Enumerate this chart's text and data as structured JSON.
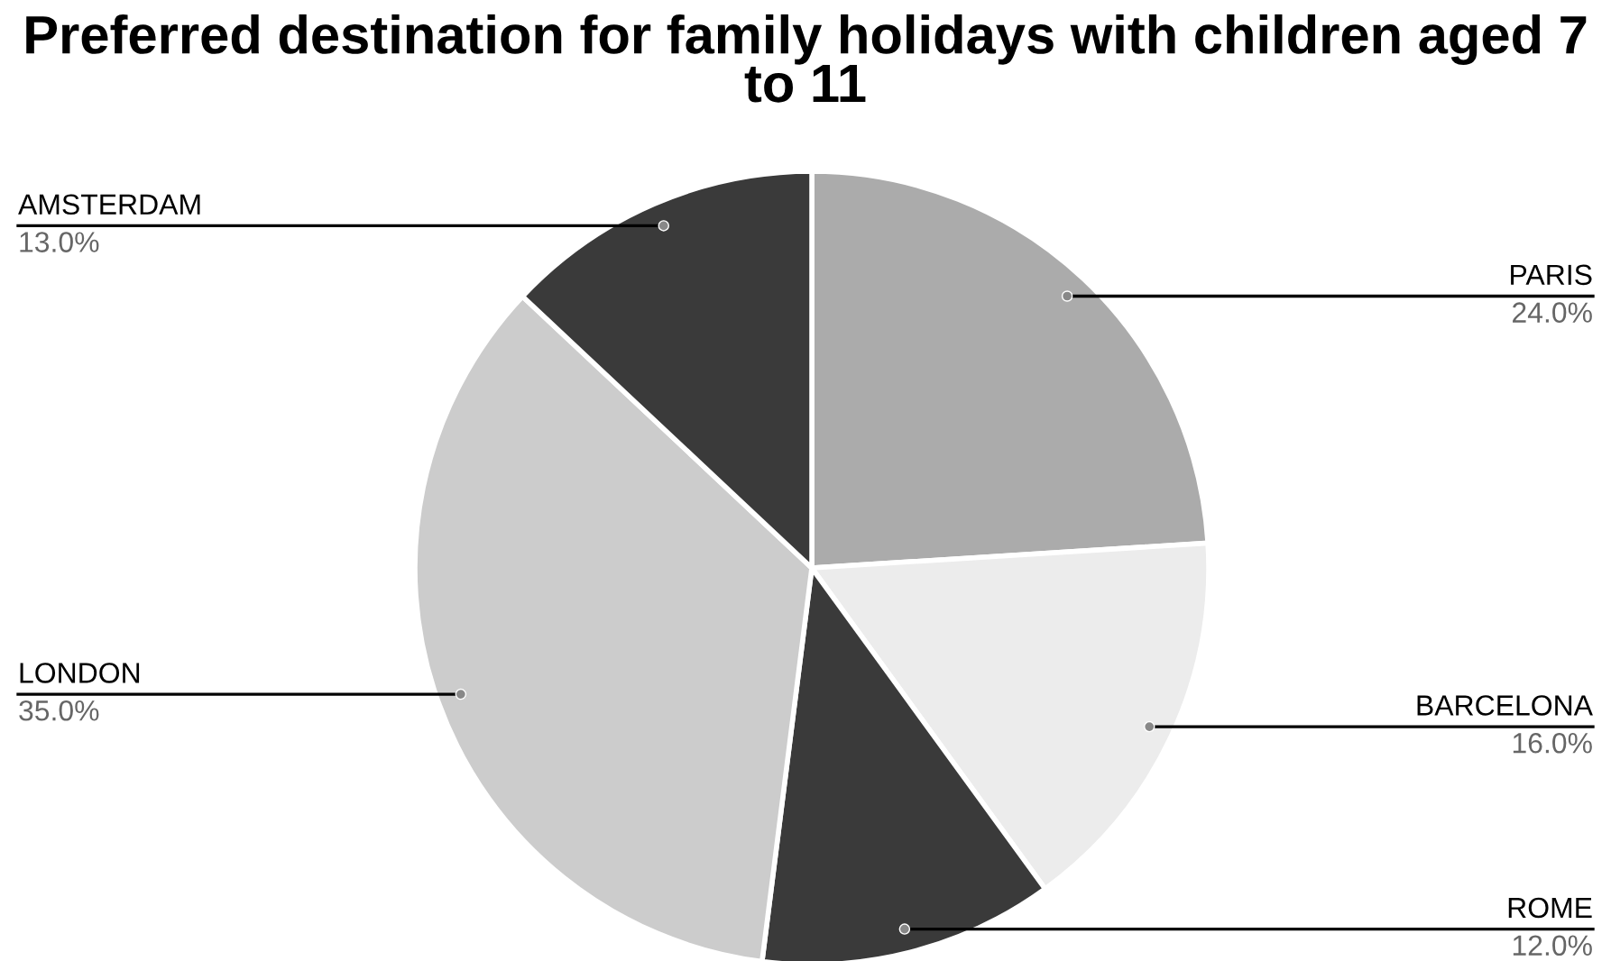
{
  "chart_data": {
    "type": "pie",
    "title": "Preferred destination for family holidays with children aged 7 to 11",
    "categories": [
      "PARIS",
      "BARCELONA",
      "ROME",
      "LONDON",
      "AMSTERDAM"
    ],
    "values": [
      24.0,
      16.0,
      12.0,
      35.0,
      13.0
    ],
    "colors": [
      "#ababab",
      "#ececec",
      "#3a3a3a",
      "#cccccc",
      "#3a3a3a"
    ],
    "value_labels": [
      "24.0%",
      "16.0%",
      "12.0%",
      "35.0%",
      "13.0%"
    ]
  }
}
